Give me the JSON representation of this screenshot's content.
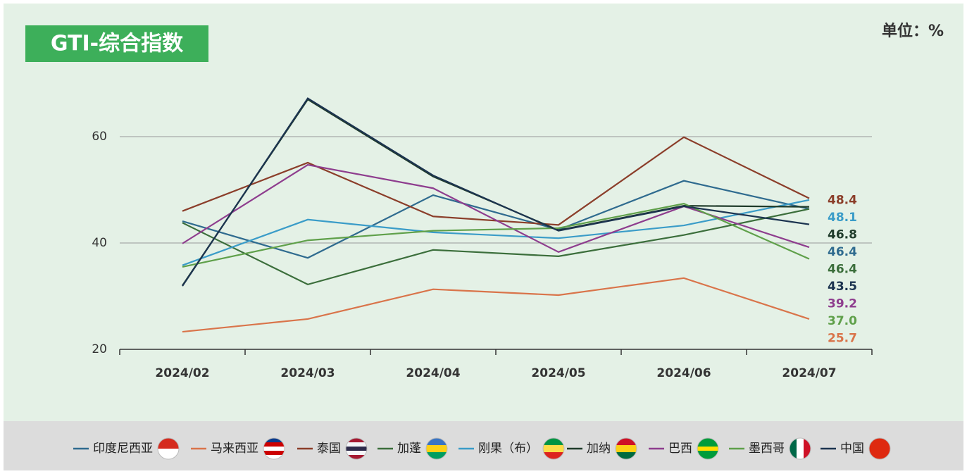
{
  "chart_data": {
    "type": "line",
    "title": "GTI-综合指数",
    "unit": "单位：%",
    "categories": [
      "2024/02",
      "2024/03",
      "2024/04",
      "2024/05",
      "2024/06",
      "2024/07"
    ],
    "ylim": [
      20,
      67.5
    ],
    "yticks": [
      20,
      40,
      60
    ],
    "grid": true,
    "legend": "bottom",
    "series": [
      {
        "name": "印度尼西亚",
        "color": "#2f6b8f",
        "values": [
          44.1,
          37.2,
          49.0,
          42.5,
          51.7,
          46.4
        ],
        "value_labels": [
          null,
          null,
          null,
          null,
          null,
          "46.4"
        ]
      },
      {
        "name": "马来西亚",
        "color": "#d9744a",
        "values": [
          23.3,
          25.7,
          31.3,
          30.2,
          33.4,
          25.7
        ],
        "value_labels": [
          null,
          null,
          null,
          null,
          null,
          "25.7"
        ]
      },
      {
        "name": "泰国",
        "color": "#8b3e2a",
        "values": [
          46.0,
          55.1,
          45.0,
          43.4,
          59.9,
          48.4
        ],
        "value_labels": [
          null,
          null,
          null,
          null,
          null,
          "48.4"
        ]
      },
      {
        "name": "加蓬",
        "color": "#3b6e3b",
        "values": [
          43.8,
          32.2,
          38.7,
          37.5,
          41.5,
          46.4
        ],
        "value_labels": [
          null,
          null,
          null,
          null,
          null,
          "46.4"
        ]
      },
      {
        "name": "刚果（布）",
        "color": "#3a9cc8",
        "values": [
          35.8,
          44.4,
          42.0,
          40.9,
          43.3,
          48.1
        ],
        "value_labels": [
          null,
          null,
          null,
          null,
          null,
          "48.1"
        ]
      },
      {
        "name": "加纳",
        "color": "#1f3b2a",
        "values": [
          32.0,
          67.0,
          52.5,
          42.4,
          47.0,
          46.8
        ],
        "value_labels": [
          null,
          null,
          null,
          null,
          null,
          "46.8"
        ]
      },
      {
        "name": "巴西",
        "color": "#8e3d8e",
        "values": [
          39.9,
          54.7,
          50.3,
          38.3,
          46.9,
          39.2
        ],
        "value_labels": [
          null,
          null,
          null,
          null,
          null,
          "39.2"
        ]
      },
      {
        "name": "墨西哥",
        "color": "#5fa04a",
        "values": [
          35.5,
          40.5,
          42.3,
          42.8,
          47.4,
          37.0
        ],
        "value_labels": [
          null,
          null,
          null,
          null,
          null,
          "37.0"
        ]
      },
      {
        "name": "中国",
        "color": "#1c3450",
        "values": [
          31.9,
          67.2,
          52.7,
          42.3,
          46.9,
          43.5
        ],
        "value_labels": [
          null,
          null,
          null,
          null,
          null,
          "43.5"
        ]
      }
    ]
  }
}
